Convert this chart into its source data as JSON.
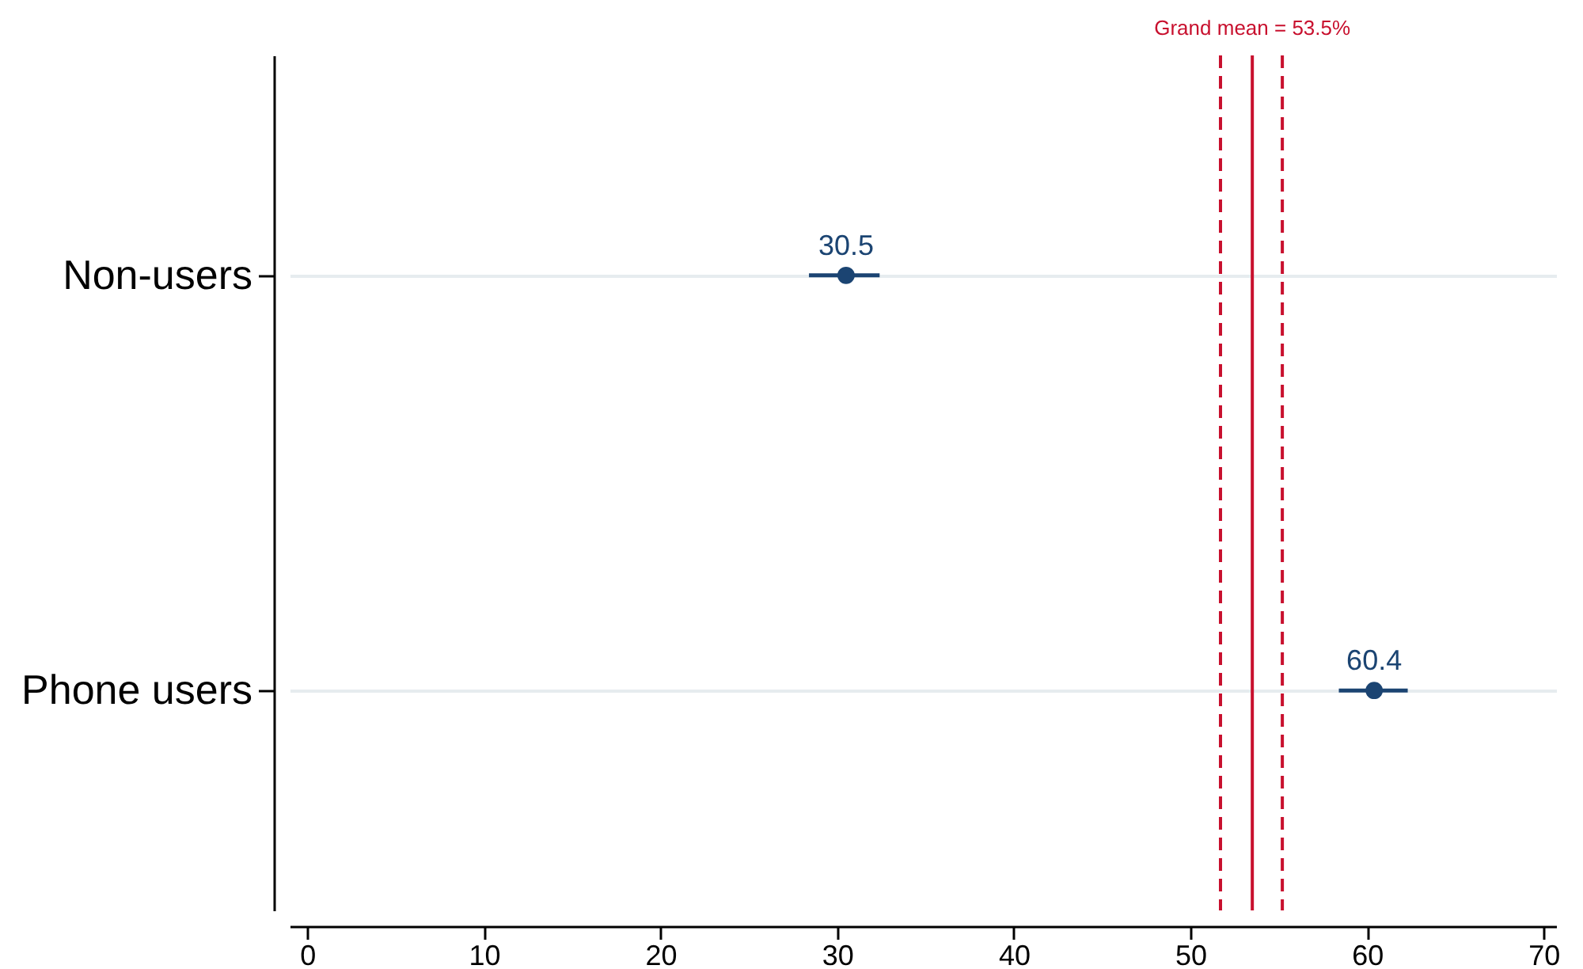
{
  "chart_data": {
    "type": "scatter",
    "categories": [
      "Non-users",
      "Phone users"
    ],
    "orientation": "horizontal",
    "series": [
      {
        "color": "#1b4472",
        "values": [
          30.5,
          60.4
        ],
        "errors": [
          [
            28.4,
            32.4
          ],
          [
            58.4,
            62.3
          ]
        ]
      }
    ],
    "data_labels": true,
    "marker": "circle",
    "xlim": [
      -1,
      70.7
    ],
    "xticks": [
      0,
      10,
      20,
      30,
      40,
      50,
      60,
      70
    ],
    "grid": "y",
    "ref_lines": [
      {
        "axis": "x",
        "value": 53.5,
        "label": "Grand mean = 53.5%",
        "color": "#c8102e",
        "line_style": "solid"
      },
      {
        "axis": "x",
        "value": 51.7,
        "color": "#c8102e",
        "line_style": "dashed"
      },
      {
        "axis": "x",
        "value": 55.2,
        "color": "#c8102e",
        "line_style": "dashed"
      }
    ]
  }
}
